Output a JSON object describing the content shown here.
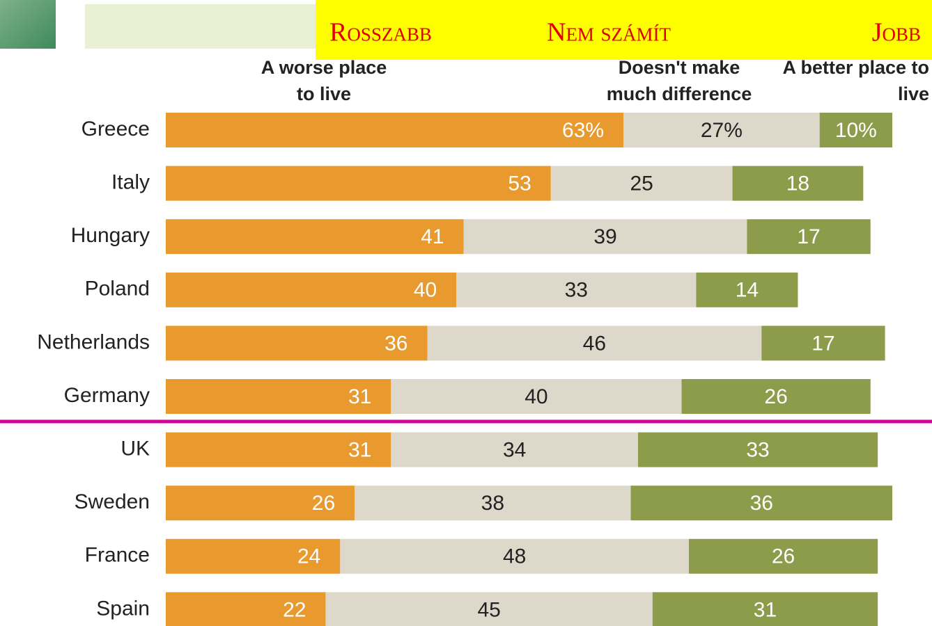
{
  "chart_data": {
    "type": "stacked-bar",
    "banner": [
      "Rosszabb",
      "Nem számít",
      "Jobb"
    ],
    "categories": [
      "Greece",
      "Italy",
      "Hungary",
      "Poland",
      "Netherlands",
      "Germany",
      "UK",
      "Sweden",
      "France",
      "Spain"
    ],
    "series": [
      {
        "name": "A worse place to live",
        "color": "#e99a2f",
        "values": [
          63,
          53,
          41,
          40,
          36,
          31,
          31,
          26,
          24,
          22
        ],
        "value_labels": [
          "63%",
          "53",
          "41",
          "40",
          "36",
          "31",
          "31",
          "26",
          "24",
          "22"
        ]
      },
      {
        "name": "Doesn't make much difference",
        "color": "#ddd8c9",
        "values": [
          27,
          25,
          39,
          33,
          46,
          40,
          34,
          38,
          48,
          45
        ],
        "value_labels": [
          "27%",
          "25",
          "39",
          "33",
          "46",
          "40",
          "34",
          "38",
          "48",
          "45"
        ]
      },
      {
        "name": "A better place to live",
        "color": "#8d9c4b",
        "values": [
          10,
          18,
          17,
          14,
          17,
          26,
          33,
          36,
          26,
          31
        ],
        "value_labels": [
          "10%",
          "18",
          "17",
          "14",
          "17",
          "26",
          "33",
          "36",
          "26",
          "31"
        ]
      }
    ]
  }
}
